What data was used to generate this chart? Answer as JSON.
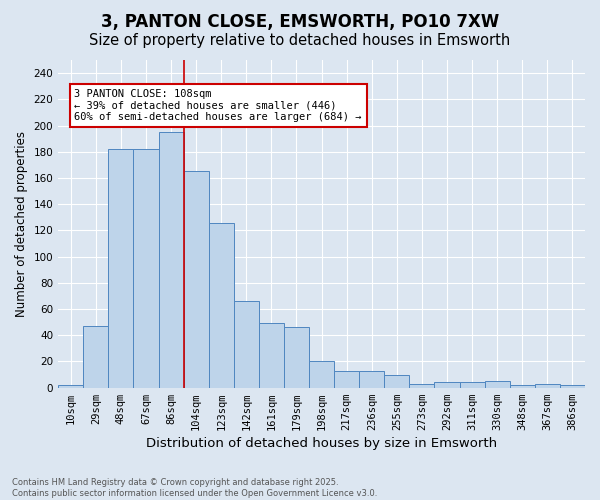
{
  "title": "3, PANTON CLOSE, EMSWORTH, PO10 7XW",
  "subtitle": "Size of property relative to detached houses in Emsworth",
  "xlabel": "Distribution of detached houses by size in Emsworth",
  "ylabel": "Number of detached properties",
  "categories": [
    "10sqm",
    "29sqm",
    "48sqm",
    "67sqm",
    "86sqm",
    "104sqm",
    "123sqm",
    "142sqm",
    "161sqm",
    "179sqm",
    "198sqm",
    "217sqm",
    "236sqm",
    "255sqm",
    "273sqm",
    "292sqm",
    "311sqm",
    "330sqm",
    "348sqm",
    "367sqm",
    "386sqm"
  ],
  "values": [
    2,
    47,
    182,
    182,
    195,
    165,
    126,
    66,
    49,
    46,
    20,
    13,
    13,
    10,
    3,
    4,
    4,
    5,
    2,
    3,
    2
  ],
  "bar_color": "#bed4ea",
  "bar_edge_color": "#4f86c0",
  "background_color": "#dce6f1",
  "vline_index": 4.5,
  "vline_color": "#cc0000",
  "annotation_text": "3 PANTON CLOSE: 108sqm\n← 39% of detached houses are smaller (446)\n60% of semi-detached houses are larger (684) →",
  "annotation_box_facecolor": "#ffffff",
  "annotation_box_edgecolor": "#cc0000",
  "ylim": [
    0,
    250
  ],
  "yticks": [
    0,
    20,
    40,
    60,
    80,
    100,
    120,
    140,
    160,
    180,
    200,
    220,
    240
  ],
  "footer": "Contains HM Land Registry data © Crown copyright and database right 2025.\nContains public sector information licensed under the Open Government Licence v3.0.",
  "grid_color": "#ffffff",
  "title_fontsize": 12,
  "subtitle_fontsize": 10.5,
  "xlabel_fontsize": 9.5,
  "ylabel_fontsize": 8.5,
  "tick_fontsize": 7.5,
  "footer_fontsize": 6
}
